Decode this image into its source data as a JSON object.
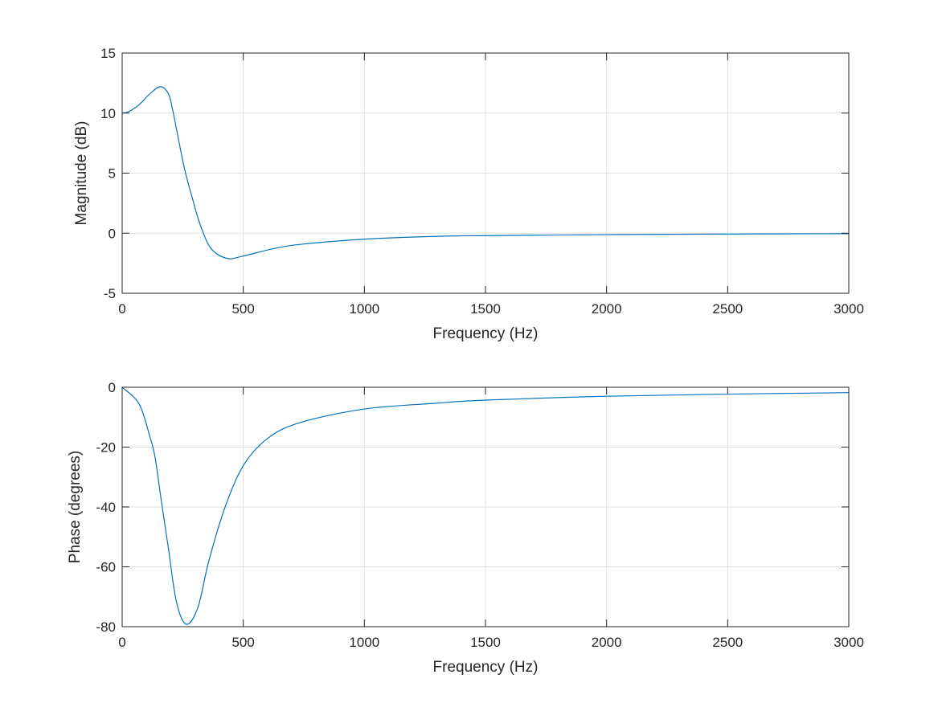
{
  "chart_data": [
    {
      "type": "line",
      "xlabel": "Frequency (Hz)",
      "ylabel": "Magnitude (dB)",
      "xlim": [
        0,
        3000
      ],
      "ylim": [
        -5,
        15
      ],
      "xticks": [
        0,
        500,
        1000,
        1500,
        2000,
        2500,
        3000
      ],
      "yticks": [
        -5,
        0,
        5,
        10,
        15
      ],
      "grid": true,
      "line_color": "#0072BD",
      "x": [
        0,
        25,
        70,
        114,
        158,
        191,
        208,
        224,
        257,
        290,
        324,
        368,
        434,
        500,
        621,
        731,
        997,
        1284,
        1500,
        2000,
        2500,
        3000
      ],
      "y": [
        10.0,
        10.1,
        10.7,
        11.6,
        12.2,
        11.6,
        10.3,
        8.7,
        5.4,
        2.9,
        0.6,
        -1.3,
        -2.1,
        -1.9,
        -1.3,
        -0.94,
        -0.5,
        -0.27,
        -0.2,
        -0.12,
        -0.07,
        -0.04
      ]
    },
    {
      "type": "line",
      "xlabel": "Frequency (Hz)",
      "ylabel": "Phase (degrees)",
      "xlim": [
        0,
        3000
      ],
      "ylim": [
        -80,
        0
      ],
      "xticks": [
        0,
        500,
        1000,
        1500,
        2000,
        2500,
        3000
      ],
      "yticks": [
        -80,
        -60,
        -40,
        -20,
        0
      ],
      "grid": true,
      "line_color": "#0072BD",
      "x": [
        0,
        70,
        114,
        136,
        163,
        191,
        224,
        265,
        313,
        357,
        423,
        500,
        599,
        731,
        997,
        1284,
        1500,
        2000,
        2500,
        3000
      ],
      "y": [
        0,
        -5.6,
        -16.4,
        -23.5,
        -38.7,
        -53.9,
        -71.7,
        -79.2,
        -73.5,
        -58.3,
        -40.5,
        -26.2,
        -17.2,
        -11.9,
        -7.3,
        -5.4,
        -4.3,
        -3.0,
        -2.3,
        -1.8
      ]
    }
  ]
}
